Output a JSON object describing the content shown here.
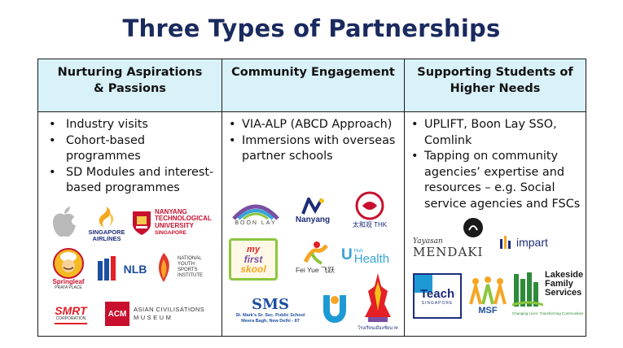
{
  "title": "Three Types of Partnerships",
  "columns": [
    {
      "header_lines": [
        "Nurturing Aspirations",
        "& Passions"
      ],
      "bullets": [
        "Industry visits",
        "Cohort-based programmes",
        "SD Modules and interest-based programmes"
      ]
    },
    {
      "header_lines": [
        "Community Engagement"
      ],
      "bullets": [
        "VIA-ALP (ABCD Approach)",
        "Immersions with overseas partner schools"
      ]
    },
    {
      "header_lines": [
        "Supporting Students of",
        "Higher Needs"
      ],
      "bullets": [
        "UPLIFT, Boon Lay SSO, Comlink",
        "Tapping on community agencies’ expertise and resources – e.g. Social service agencies and FSCs"
      ]
    }
  ],
  "logos": {
    "sg_airlines": [
      "SINGAPORE",
      "AIRLINES"
    ],
    "ntu": [
      "NANYANG",
      "TECHNOLOGICAL",
      "UNIVERSITY",
      "SINGAPORE"
    ],
    "springleaf": [
      "Springleaf",
      "PRATA PLACE"
    ],
    "nlb": "NLB",
    "nysi": [
      "NATIONAL",
      "YOUTH",
      "SPORTS",
      "INSTITUTE"
    ],
    "smrt": [
      "SMRT",
      "CORPORATION"
    ],
    "acm": [
      "ACM",
      "ASIAN CIVILISATIONS",
      "MUSEUM"
    ],
    "boonlay": "BOON LAY",
    "nanyang": "Nanyang",
    "thk": "太和观 THK",
    "myfirstskool": [
      "my",
      "first",
      "skool"
    ],
    "feiyue": "Fei Yue 飞跃",
    "health": [
      "Health",
      "Hub"
    ],
    "stmarks": [
      "St. Mark's Sr. Sec. Public School",
      "Meera Bagh, New Delhi - 87"
    ],
    "thai": "โรงเรียนเมืองชัยนาท",
    "mendaki": [
      "Yayasan",
      "MENDAKI"
    ],
    "impart": "impart",
    "teach": [
      "Teach",
      "SINGAPORE"
    ],
    "msf": "MSF",
    "lakeside": [
      "Lakeside",
      "Family",
      "Services",
      "Changing Lives. Transforming Communities"
    ]
  },
  "colors": {
    "title": "#1a2a5e",
    "header_bg": "#d9f1f9"
  }
}
